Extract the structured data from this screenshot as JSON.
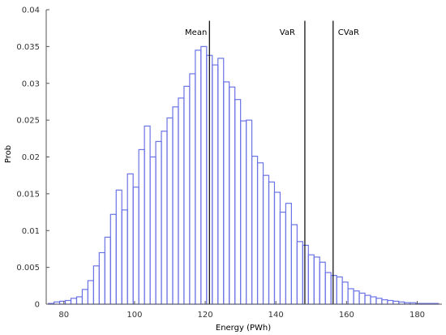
{
  "chart_data": {
    "type": "histogram",
    "title": "",
    "xlabel": "Energy (PWh)",
    "ylabel": "Prob",
    "xlim": [
      75,
      187
    ],
    "ylim": [
      0,
      0.04
    ],
    "x_ticks": [
      80,
      100,
      120,
      140,
      160,
      180
    ],
    "y_ticks": [
      0,
      0.005,
      0.01,
      0.015,
      0.02,
      0.025,
      0.03,
      0.035,
      0.04
    ],
    "y_tick_labels": [
      "0",
      "0.005",
      "0.01",
      "0.015",
      "0.02",
      "0.025",
      "0.03",
      "0.035",
      "0.04"
    ],
    "bin_edges": [
      75.6,
      77.2,
      78.8,
      80.4,
      82.0,
      83.6,
      85.2,
      86.8,
      88.4,
      90.0,
      91.6,
      93.2,
      94.8,
      96.4,
      98.0,
      99.6,
      101.2,
      102.8,
      104.4,
      106.0,
      107.6,
      109.2,
      110.8,
      112.4,
      114.0,
      115.6,
      117.2,
      118.8,
      120.4,
      122.0,
      123.6,
      125.2,
      126.8,
      128.4,
      130.0,
      131.6,
      133.2,
      134.8,
      136.4,
      138.0,
      139.6,
      141.2,
      142.8,
      144.4,
      146.0,
      147.6,
      149.2,
      150.8,
      152.4,
      154.0,
      155.6,
      157.2,
      158.8,
      160.4,
      162.0,
      163.6,
      165.2,
      166.8,
      168.4,
      170.0,
      171.6,
      173.2,
      174.8,
      176.4,
      178.0,
      179.6,
      181.2,
      182.8,
      184.4,
      186.0
    ],
    "values": [
      0.0001,
      0.0003,
      0.0004,
      0.0005,
      0.0008,
      0.001,
      0.002,
      0.0032,
      0.0052,
      0.007,
      0.0091,
      0.0122,
      0.0155,
      0.0128,
      0.0177,
      0.0159,
      0.021,
      0.0242,
      0.02,
      0.0221,
      0.0235,
      0.0253,
      0.0268,
      0.028,
      0.0296,
      0.0313,
      0.0345,
      0.035,
      0.0338,
      0.0325,
      0.0334,
      0.0302,
      0.0295,
      0.0278,
      0.0249,
      0.025,
      0.0201,
      0.0192,
      0.0175,
      0.0166,
      0.0152,
      0.0125,
      0.0137,
      0.0108,
      0.0085,
      0.008,
      0.0067,
      0.0064,
      0.0057,
      0.0043,
      0.0039,
      0.0037,
      0.003,
      0.0021,
      0.0018,
      0.0015,
      0.0012,
      0.001,
      0.0008,
      0.0006,
      0.0005,
      0.0004,
      0.0003,
      0.0002,
      0.0002,
      0.0001,
      0.0001,
      0.0001,
      0.0001
    ],
    "bar_color": "#6b74e6",
    "reference_lines": [
      {
        "label": "Mean",
        "x": 121.2
      },
      {
        "label": "VaR",
        "x": 148.2
      },
      {
        "label": "CVaR",
        "x": 156.2
      }
    ],
    "line_color": "#000000",
    "grid": false,
    "legend": "none"
  }
}
